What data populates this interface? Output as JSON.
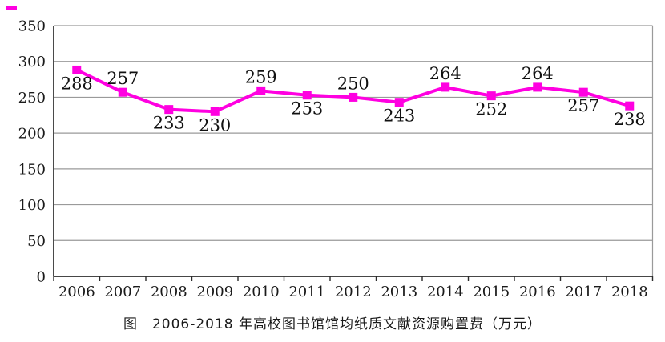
{
  "page": {
    "background": "#ffffff"
  },
  "chart_data": {
    "type": "line",
    "categories": [
      "2006",
      "2007",
      "2008",
      "2009",
      "2010",
      "2011",
      "2012",
      "2013",
      "2014",
      "2015",
      "2016",
      "2017",
      "2018"
    ],
    "values": [
      288,
      257,
      233,
      230,
      259,
      253,
      250,
      243,
      264,
      252,
      264,
      257,
      238
    ],
    "label_positions": [
      "below",
      "above",
      "below",
      "below",
      "above",
      "below",
      "above",
      "below",
      "above",
      "below",
      "above",
      "below",
      "below"
    ],
    "title": "图　2006-2018 年高校图书馆馆均纸质文献资源购置费（万元）",
    "xlabel": "",
    "ylabel": "",
    "ylim": [
      0,
      350
    ],
    "ytick_step": 50,
    "yticks": [
      0,
      50,
      100,
      150,
      200,
      250,
      300,
      350
    ],
    "grid": true,
    "legend": "none",
    "line_color": "#ff00e1",
    "marker": "square",
    "grid_color": "#9a9a9a",
    "axis_color": "#2b2b2b",
    "label_color": "#111111"
  }
}
